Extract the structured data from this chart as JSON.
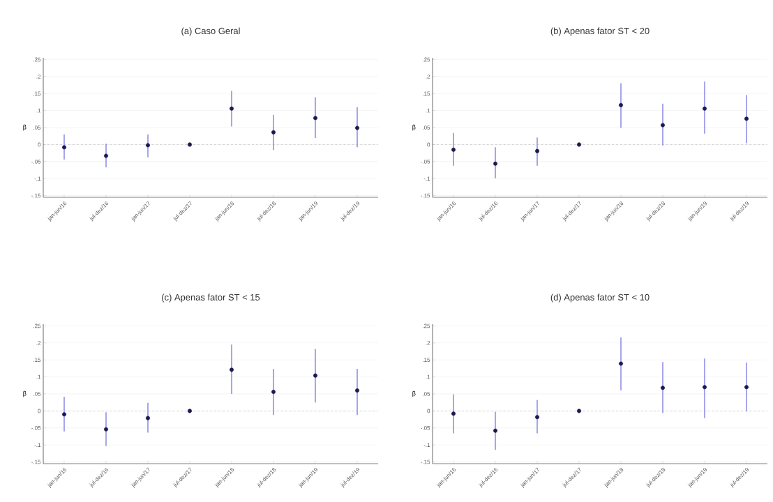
{
  "chart_data": [
    {
      "type": "scatter",
      "title": "(a) Caso Geral",
      "ylabel": "β",
      "categories": [
        "jan-jun/16",
        "jul-dez/16",
        "jan-jun/17",
        "jul-dez/17",
        "jan-jun/18",
        "jul-dez/18",
        "jan-jun/19",
        "jul-dez/19"
      ],
      "values": [
        -0.008,
        -0.033,
        -0.002,
        0,
        0.106,
        0.036,
        0.078,
        0.049
      ],
      "errors": [
        [
          -0.044,
          0.03
        ],
        [
          -0.067,
          0.003
        ],
        [
          -0.037,
          0.03
        ],
        null,
        [
          0.053,
          0.158
        ],
        [
          -0.016,
          0.087
        ],
        [
          0.019,
          0.139
        ],
        [
          -0.008,
          0.11
        ]
      ],
      "color": "#1a1a4e",
      "marker": "circle",
      "grid": "y",
      "ylim": [
        -0.155,
        0.255
      ],
      "yticks": [
        {
          "value": -0.15,
          "label": "-.15"
        },
        {
          "value": -0.1,
          "label": "-.1"
        },
        {
          "value": -0.05,
          "label": "-.05"
        },
        0,
        {
          "value": 0.05,
          "label": ".05"
        },
        {
          "value": 0.1,
          "label": ".1"
        },
        {
          "value": 0.15,
          "label": ".15"
        },
        {
          "value": 0.2,
          "label": ".2"
        },
        {
          "value": 0.25,
          "label": ".25"
        }
      ],
      "ref_lines": [
        {
          "axis": "y",
          "value": 0,
          "line_style": "dashed",
          "color": "#888888"
        }
      ]
    },
    {
      "type": "scatter",
      "title": "(b) Apenas fator ST < 20",
      "ylabel": "β",
      "categories": [
        "jan-jun/16",
        "jul-dez/16",
        "jan-jun/17",
        "jul-dez/17",
        "jan-jun/18",
        "jul-dez/18",
        "jan-jun/19",
        "jul-dez/19"
      ],
      "values": [
        -0.015,
        -0.056,
        -0.019,
        0,
        0.116,
        0.057,
        0.106,
        0.076
      ],
      "errors": [
        [
          -0.062,
          0.034
        ],
        [
          -0.099,
          -0.008
        ],
        [
          -0.062,
          0.021
        ],
        null,
        [
          0.049,
          0.18
        ],
        [
          -0.003,
          0.12
        ],
        [
          0.032,
          0.186
        ],
        [
          0.004,
          0.146
        ]
      ],
      "color": "#1a1a4e",
      "marker": "circle",
      "grid": "y",
      "ylim": [
        -0.155,
        0.255
      ],
      "yticks": [
        {
          "value": -0.15,
          "label": "-.15"
        },
        {
          "value": -0.1,
          "label": "-.1"
        },
        {
          "value": -0.05,
          "label": "-.05"
        },
        0,
        {
          "value": 0.05,
          "label": ".05"
        },
        {
          "value": 0.1,
          "label": ".1"
        },
        {
          "value": 0.15,
          "label": ".15"
        },
        {
          "value": 0.2,
          "label": ".2"
        },
        {
          "value": 0.25,
          "label": ".25"
        }
      ],
      "ref_lines": [
        {
          "axis": "y",
          "value": 0,
          "line_style": "dashed",
          "color": "#888888"
        }
      ]
    },
    {
      "type": "scatter",
      "title": "(c) Apenas fator ST < 15",
      "ylabel": "β",
      "categories": [
        "jan-jun/16",
        "jul-dez/16",
        "jan-jun/17",
        "jul-dez/17",
        "jan-jun/18",
        "jul-dez/18",
        "jan-jun/19",
        "jul-dez/19"
      ],
      "values": [
        -0.01,
        -0.054,
        -0.021,
        0,
        0.121,
        0.056,
        0.104,
        0.06
      ],
      "errors": [
        [
          -0.06,
          0.042
        ],
        [
          -0.103,
          -0.004
        ],
        [
          -0.064,
          0.024
        ],
        null,
        [
          0.05,
          0.195
        ],
        [
          -0.012,
          0.124
        ],
        [
          0.025,
          0.182
        ],
        [
          -0.012,
          0.124
        ]
      ],
      "color": "#1a1a4e",
      "marker": "circle",
      "grid": "y",
      "ylim": [
        -0.155,
        0.255
      ],
      "yticks": [
        {
          "value": -0.15,
          "label": "-.15"
        },
        {
          "value": -0.1,
          "label": "-.1"
        },
        {
          "value": -0.05,
          "label": "-.05"
        },
        0,
        {
          "value": 0.05,
          "label": ".05"
        },
        {
          "value": 0.1,
          "label": ".1"
        },
        {
          "value": 0.15,
          "label": ".15"
        },
        {
          "value": 0.2,
          "label": ".2"
        },
        {
          "value": 0.25,
          "label": ".25"
        }
      ],
      "ref_lines": [
        {
          "axis": "y",
          "value": 0,
          "line_style": "dashed",
          "color": "#888888"
        }
      ]
    },
    {
      "type": "scatter",
      "title": "(d) Apenas fator ST < 10",
      "ylabel": "β",
      "categories": [
        "jan-jun/16",
        "jul-dez/16",
        "jan-jun/17",
        "jul-dez/17",
        "jan-jun/18",
        "jul-dez/18",
        "jan-jun/19",
        "jul-dez/19"
      ],
      "values": [
        -0.008,
        -0.058,
        -0.018,
        0,
        0.139,
        0.068,
        0.07,
        0.07
      ],
      "errors": [
        [
          -0.066,
          0.049
        ],
        [
          -0.114,
          -0.003
        ],
        [
          -0.066,
          0.032
        ],
        null,
        [
          0.06,
          0.216
        ],
        [
          -0.006,
          0.144
        ],
        [
          -0.021,
          0.154
        ],
        [
          -0.002,
          0.142
        ]
      ],
      "color": "#1a1a4e",
      "marker": "circle",
      "grid": "y",
      "ylim": [
        -0.155,
        0.255
      ],
      "yticks": [
        {
          "value": -0.15,
          "label": "-.15"
        },
        {
          "value": -0.1,
          "label": "-.1"
        },
        {
          "value": -0.05,
          "label": "-.05"
        },
        0,
        {
          "value": 0.05,
          "label": ".05"
        },
        {
          "value": 0.1,
          "label": ".1"
        },
        {
          "value": 0.15,
          "label": ".15"
        },
        {
          "value": 0.2,
          "label": ".2"
        },
        {
          "value": 0.25,
          "label": ".25"
        }
      ],
      "ref_lines": [
        {
          "axis": "y",
          "value": 0,
          "line_style": "dashed",
          "color": "#888888"
        }
      ]
    }
  ]
}
